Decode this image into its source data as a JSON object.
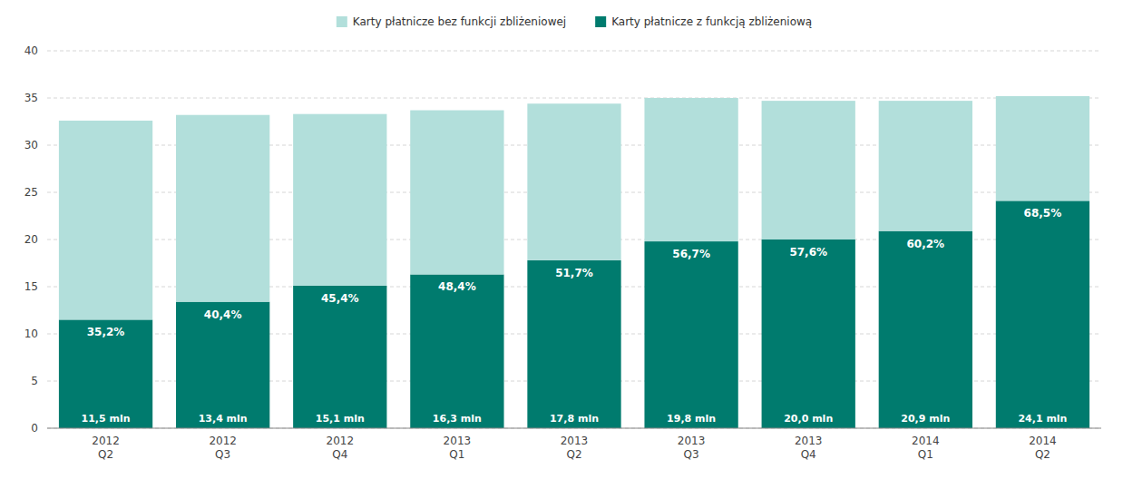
{
  "chart_data": {
    "type": "bar",
    "stacked": true,
    "categories": [
      "2012\nQ2",
      "2012\nQ3",
      "2012\nQ4",
      "2013\nQ1",
      "2013\nQ2",
      "2013\nQ3",
      "2013\nQ4",
      "2014\nQ1",
      "2014\nQ2"
    ],
    "series": [
      {
        "name": "Karty płatnicze z funkcją zbliżeniową",
        "color": "#007b6e",
        "values": [
          11.5,
          13.4,
          15.1,
          16.3,
          17.8,
          19.8,
          20.0,
          20.9,
          24.1
        ],
        "value_labels": [
          "11,5 mln",
          "13,4 mln",
          "15,1 mln",
          "16,3 mln",
          "17,8 mln",
          "19,8 mln",
          "20,0 mln",
          "20,9 mln",
          "24,1 mln"
        ],
        "shares": [
          35.2,
          40.4,
          45.4,
          48.4,
          51.7,
          56.7,
          57.6,
          60.2,
          68.5
        ],
        "share_labels": [
          "35,2%",
          "40,4%",
          "45,4%",
          "48,4%",
          "51,7%",
          "56,7%",
          "57,6%",
          "60,2%",
          "68,5%"
        ]
      },
      {
        "name": "Karty płatnicze bez funkcji zbliżeniowej",
        "color": "#b2dfdb",
        "values": [
          21.1,
          19.8,
          18.2,
          17.4,
          16.6,
          15.2,
          14.7,
          13.8,
          11.1
        ]
      }
    ],
    "ylim": [
      0,
      40
    ],
    "yticks": [
      0,
      5,
      10,
      15,
      20,
      25,
      30,
      35,
      40
    ],
    "grid": true,
    "legend": "top",
    "data_labels": true
  }
}
